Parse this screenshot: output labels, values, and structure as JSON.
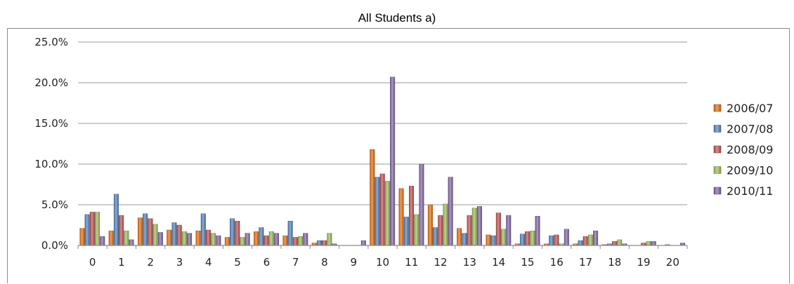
{
  "chart_data": {
    "type": "bar",
    "title": "All Students a)",
    "xlabel": "",
    "ylabel": "",
    "ylim": [
      0,
      25
    ],
    "y_tick_labels": [
      "0.0%",
      "5.0%",
      "10.0%",
      "15.0%",
      "20.0%",
      "25.0%"
    ],
    "grid": true,
    "legend_position": "right",
    "categories": [
      "0",
      "1",
      "2",
      "3",
      "4",
      "5",
      "6",
      "7",
      "8",
      "9",
      "10",
      "11",
      "12",
      "13",
      "14",
      "15",
      "16",
      "17",
      "18",
      "19",
      "20"
    ],
    "series": [
      {
        "name": "2006/07",
        "color": "#E46C0A",
        "values": [
          2.1,
          1.8,
          3.4,
          1.9,
          1.8,
          1.0,
          1.7,
          1.2,
          0.3,
          0.0,
          11.8,
          7.0,
          5.0,
          2.1,
          1.3,
          0.2,
          0.2,
          0.2,
          0.1,
          0.0,
          0.0
        ]
      },
      {
        "name": "2007/08",
        "color": "#4F81BD",
        "values": [
          3.8,
          6.3,
          3.9,
          2.8,
          3.9,
          3.3,
          2.2,
          3.0,
          0.6,
          0.0,
          8.4,
          3.5,
          2.2,
          1.5,
          1.2,
          1.4,
          1.2,
          0.6,
          0.2,
          0.0,
          0.1
        ]
      },
      {
        "name": "2008/09",
        "color": "#C0504D",
        "values": [
          4.1,
          3.7,
          3.3,
          2.5,
          1.9,
          3.0,
          1.2,
          1.0,
          0.6,
          0.0,
          8.8,
          7.3,
          3.7,
          3.7,
          4.0,
          1.7,
          1.3,
          1.1,
          0.5,
          0.3,
          0.0
        ]
      },
      {
        "name": "2009/10",
        "color": "#9BBB59",
        "values": [
          4.1,
          1.8,
          2.6,
          1.7,
          1.5,
          1.0,
          1.7,
          1.1,
          1.5,
          0.0,
          7.9,
          3.8,
          5.1,
          4.6,
          2.0,
          1.8,
          0.2,
          1.3,
          0.7,
          0.5,
          0.0
        ]
      },
      {
        "name": "2010/11",
        "color": "#8064A2",
        "values": [
          1.1,
          0.7,
          1.6,
          1.5,
          1.2,
          1.5,
          1.5,
          1.5,
          0.2,
          0.6,
          20.7,
          10.0,
          8.4,
          4.8,
          3.7,
          3.6,
          2.0,
          1.8,
          0.2,
          0.5,
          0.3
        ]
      }
    ]
  }
}
